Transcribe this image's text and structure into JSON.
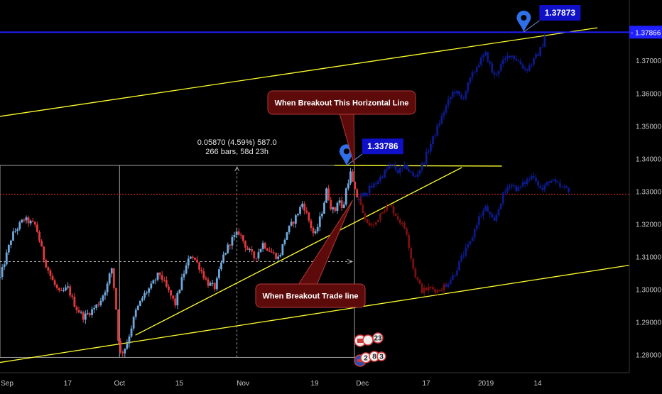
{
  "chart_data": {
    "type": "candlestick",
    "title": "",
    "xlabel": "",
    "ylabel": "",
    "ylim": [
      1.2745,
      1.3885
    ],
    "grid": false,
    "x_tick_labels": [
      {
        "label": "Sep",
        "t": 0
      },
      {
        "label": "17",
        "t": 17
      },
      {
        "label": "Oct",
        "t": 30
      },
      {
        "label": "15",
        "t": 45
      },
      {
        "label": "Nov",
        "t": 61
      },
      {
        "label": "19",
        "t": 79
      },
      {
        "label": "Dec",
        "t": 91
      },
      {
        "label": "17",
        "t": 107
      },
      {
        "label": "2019",
        "t": 122
      },
      {
        "label": "14",
        "t": 135
      }
    ],
    "y_tick_labels": [
      "1.28000",
      "1.29000",
      "1.30000",
      "1.31000",
      "1.32000",
      "1.33000",
      "1.34000",
      "1.35000",
      "1.36000",
      "1.37000"
    ],
    "current_price_label": "1.37866",
    "horizontal_line_price": 1.37866,
    "reference_price_line": 1.3291,
    "price_markers": [
      {
        "label": "1.37873",
        "value": 1.37873,
        "t": 131.5
      },
      {
        "label": "1.33786",
        "value": 1.33786,
        "t": 87
      }
    ],
    "measurement": {
      "line1": "0.05870 (4.59%) 587.0",
      "line2": "266 bars, 58d 23h",
      "t_start": 30,
      "t_end": 89,
      "low": 1.2792,
      "high": 1.3379,
      "mid": 1.3085
    },
    "callouts": [
      {
        "text": "When Breakout This Horizontal Line"
      },
      {
        "text": "When Breakout Trade line"
      }
    ],
    "trendlines": [
      {
        "name": "upper channel",
        "t0": -5,
        "v0": 1.352,
        "t1": 150,
        "v1": 1.38
      },
      {
        "name": "lower channel",
        "t0": -5,
        "v0": 1.2767,
        "t1": 164,
        "v1": 1.3085
      },
      {
        "name": "rising support",
        "t0": 34,
        "v0": 1.286,
        "t1": 116,
        "v1": 1.3373
      },
      {
        "name": "horizontal resistance",
        "t0": 84,
        "v0": 1.3379,
        "t1": 126,
        "v1": 1.3377
      }
    ],
    "price_series": [
      {
        "t": 0,
        "v": 1.3035
      },
      {
        "t": 3,
        "v": 1.3165
      },
      {
        "t": 6,
        "v": 1.3215
      },
      {
        "t": 9,
        "v": 1.3195
      },
      {
        "t": 11,
        "v": 1.3095
      },
      {
        "t": 13,
        "v": 1.303
      },
      {
        "t": 15,
        "v": 1.2985
      },
      {
        "t": 17,
        "v": 1.3005
      },
      {
        "t": 19,
        "v": 1.2945
      },
      {
        "t": 21,
        "v": 1.2915
      },
      {
        "t": 23,
        "v": 1.2935
      },
      {
        "t": 25,
        "v": 1.296
      },
      {
        "t": 27,
        "v": 1.3015
      },
      {
        "t": 28,
        "v": 1.307
      },
      {
        "t": 29,
        "v": 1.2965
      },
      {
        "t": 30,
        "v": 1.28
      },
      {
        "t": 31,
        "v": 1.2812
      },
      {
        "t": 32,
        "v": 1.284
      },
      {
        "t": 34,
        "v": 1.293
      },
      {
        "t": 36,
        "v": 1.298
      },
      {
        "t": 38,
        "v": 1.301
      },
      {
        "t": 40,
        "v": 1.305
      },
      {
        "t": 42,
        "v": 1.3
      },
      {
        "t": 44,
        "v": 1.2955
      },
      {
        "t": 46,
        "v": 1.3045
      },
      {
        "t": 48,
        "v": 1.311
      },
      {
        "t": 50,
        "v": 1.307
      },
      {
        "t": 52,
        "v": 1.302
      },
      {
        "t": 54,
        "v": 1.3005
      },
      {
        "t": 56,
        "v": 1.31
      },
      {
        "t": 58,
        "v": 1.315
      },
      {
        "t": 60,
        "v": 1.3175
      },
      {
        "t": 62,
        "v": 1.3125
      },
      {
        "t": 64,
        "v": 1.3095
      },
      {
        "t": 66,
        "v": 1.314
      },
      {
        "t": 68,
        "v": 1.3115
      },
      {
        "t": 70,
        "v": 1.3095
      },
      {
        "t": 72,
        "v": 1.3175
      },
      {
        "t": 74,
        "v": 1.3215
      },
      {
        "t": 76,
        "v": 1.3265
      },
      {
        "t": 77,
        "v": 1.323
      },
      {
        "t": 79,
        "v": 1.316
      },
      {
        "t": 81,
        "v": 1.3245
      },
      {
        "t": 82,
        "v": 1.3305
      },
      {
        "t": 83,
        "v": 1.3255
      },
      {
        "t": 84,
        "v": 1.3235
      },
      {
        "t": 85,
        "v": 1.3285
      },
      {
        "t": 86,
        "v": 1.3235
      },
      {
        "t": 87,
        "v": 1.3315
      },
      {
        "t": 88,
        "v": 1.3355
      },
      {
        "t": 89,
        "v": 1.33
      },
      {
        "t": 90,
        "v": 1.3275
      }
    ],
    "projection_bullish": [
      {
        "t": 90,
        "v": 1.3275
      },
      {
        "t": 92,
        "v": 1.33
      },
      {
        "t": 94,
        "v": 1.332
      },
      {
        "t": 96,
        "v": 1.335
      },
      {
        "t": 98,
        "v": 1.338
      },
      {
        "t": 100,
        "v": 1.336
      },
      {
        "t": 102,
        "v": 1.3375
      },
      {
        "t": 104,
        "v": 1.334
      },
      {
        "t": 106,
        "v": 1.338
      },
      {
        "t": 108,
        "v": 1.344
      },
      {
        "t": 110,
        "v": 1.35
      },
      {
        "t": 112,
        "v": 1.356
      },
      {
        "t": 114,
        "v": 1.361
      },
      {
        "t": 116,
        "v": 1.358
      },
      {
        "t": 118,
        "v": 1.364
      },
      {
        "t": 120,
        "v": 1.369
      },
      {
        "t": 122,
        "v": 1.372
      },
      {
        "t": 124,
        "v": 1.365
      },
      {
        "t": 126,
        "v": 1.369
      },
      {
        "t": 128,
        "v": 1.372
      },
      {
        "t": 130,
        "v": 1.37
      },
      {
        "t": 132,
        "v": 1.367
      },
      {
        "t": 134,
        "v": 1.37
      },
      {
        "t": 136,
        "v": 1.374
      },
      {
        "t": 137,
        "v": 1.379
      }
    ],
    "projection_bearish": [
      {
        "t": 90,
        "v": 1.3275
      },
      {
        "t": 92,
        "v": 1.32
      },
      {
        "t": 94,
        "v": 1.3195
      },
      {
        "t": 96,
        "v": 1.3245
      },
      {
        "t": 98,
        "v": 1.3255
      },
      {
        "t": 100,
        "v": 1.3215
      },
      {
        "t": 102,
        "v": 1.318
      },
      {
        "t": 103,
        "v": 1.311
      },
      {
        "t": 104,
        "v": 1.305
      },
      {
        "t": 106,
        "v": 1.2995
      },
      {
        "t": 108,
        "v": 1.3005
      },
      {
        "t": 110,
        "v": 1.2995
      },
      {
        "t": 112,
        "v": 1.3015
      }
    ],
    "projection_recovery": [
      {
        "t": 112,
        "v": 1.3015
      },
      {
        "t": 114,
        "v": 1.3045
      },
      {
        "t": 116,
        "v": 1.31
      },
      {
        "t": 118,
        "v": 1.314
      },
      {
        "t": 120,
        "v": 1.3215
      },
      {
        "t": 122,
        "v": 1.325
      },
      {
        "t": 124,
        "v": 1.32
      },
      {
        "t": 126,
        "v": 1.328
      },
      {
        "t": 128,
        "v": 1.3325
      },
      {
        "t": 130,
        "v": 1.3305
      },
      {
        "t": 132,
        "v": 1.333
      },
      {
        "t": 134,
        "v": 1.335
      },
      {
        "t": 136,
        "v": 1.33
      },
      {
        "t": 138,
        "v": 1.3335
      },
      {
        "t": 141,
        "v": 1.331
      },
      {
        "t": 143,
        "v": 1.3305
      }
    ],
    "event_badges": [
      "23",
      "2",
      "8",
      "3"
    ],
    "colors": {
      "background": "#000000",
      "up_candle": "#6fa8dc",
      "down_candle": "#e03a3e",
      "projection_up": "#0d1a8a",
      "projection_down": "#7a1010",
      "trendline": "#ffff2e",
      "horizontal_line": "#1f1fff",
      "reference_line": "#ff2a2a",
      "measure_box": "#c8c8c8",
      "callout_fill": "#5c0a0a",
      "callout_border": "#b23a3a",
      "marker": "#2f6fe8",
      "label_fill": "#1010c8",
      "axis_text": "#c8c8c8"
    }
  }
}
